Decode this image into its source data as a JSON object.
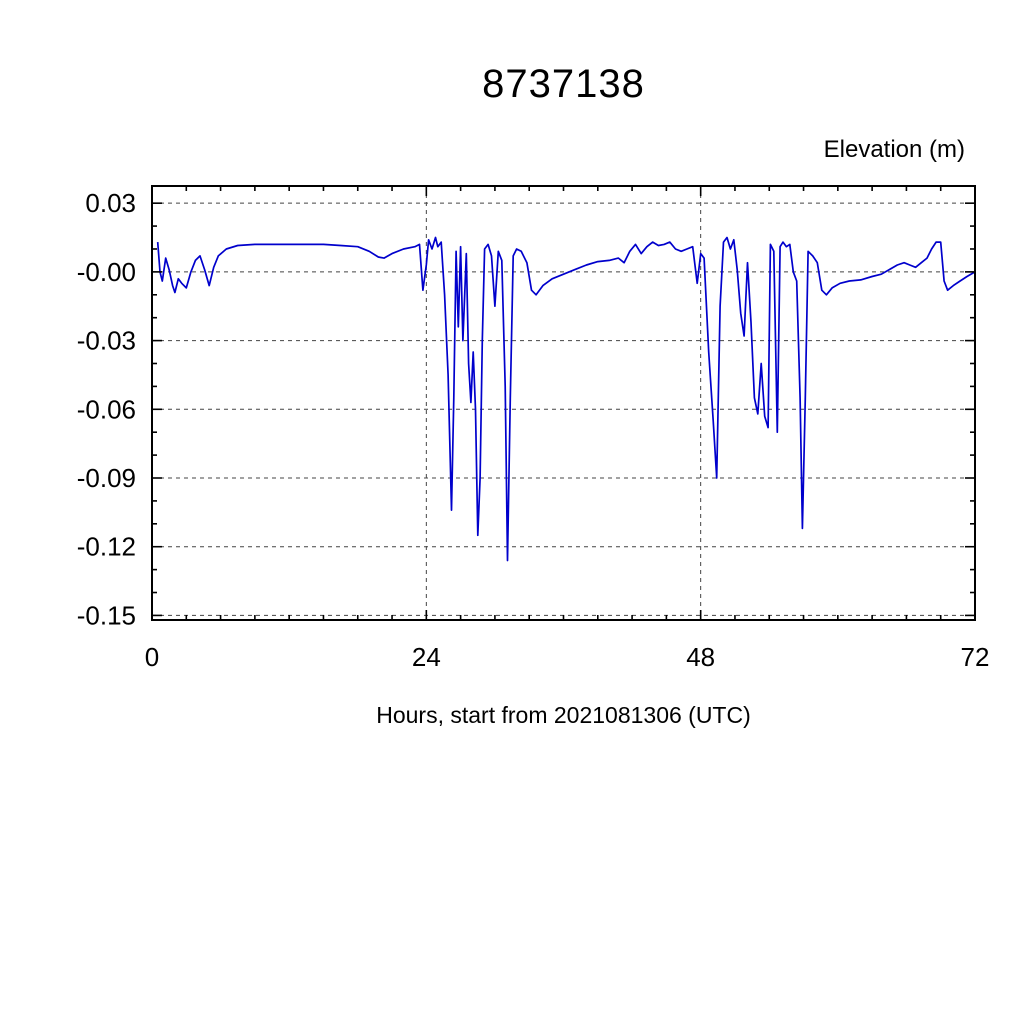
{
  "chart_data": {
    "type": "line",
    "title": "8737138",
    "ylabel": "Elevation (m)",
    "xlabel": "Hours, start from 2021081306 (UTC)",
    "xlim": [
      0,
      72
    ],
    "ylim": [
      -0.152,
      0.0375
    ],
    "grid": true,
    "grid_x": [
      24,
      48
    ],
    "x_minor_step": 3,
    "y_minor_step": 0.01,
    "legend": "none",
    "colors": {
      "line": "#0000cc",
      "frame": "#000000",
      "grid": "#444444"
    },
    "xticks": [
      {
        "v": 0,
        "label": "0"
      },
      {
        "v": 24,
        "label": "24"
      },
      {
        "v": 48,
        "label": "48"
      },
      {
        "v": 72,
        "label": "72"
      }
    ],
    "yticks": [
      {
        "v": 0.03,
        "label": "0.03"
      },
      {
        "v": 0.0,
        "label": "-0.00"
      },
      {
        "v": -0.03,
        "label": "-0.03"
      },
      {
        "v": -0.06,
        "label": "-0.06"
      },
      {
        "v": -0.09,
        "label": "-0.09"
      },
      {
        "v": -0.12,
        "label": "-0.12"
      },
      {
        "v": -0.15,
        "label": "-0.15"
      }
    ],
    "series_name": "elevation",
    "points": [
      [
        0.5,
        0.013
      ],
      [
        0.7,
        0.0
      ],
      [
        0.9,
        -0.004
      ],
      [
        1.2,
        0.006
      ],
      [
        1.5,
        0.001
      ],
      [
        1.8,
        -0.006
      ],
      [
        2.0,
        -0.009
      ],
      [
        2.3,
        -0.003
      ],
      [
        2.6,
        -0.005
      ],
      [
        3.0,
        -0.007
      ],
      [
        3.4,
        0.0
      ],
      [
        3.8,
        0.005
      ],
      [
        4.2,
        0.007
      ],
      [
        4.6,
        0.001
      ],
      [
        5.0,
        -0.006
      ],
      [
        5.4,
        0.002
      ],
      [
        5.8,
        0.007
      ],
      [
        6.5,
        0.01
      ],
      [
        7.5,
        0.0115
      ],
      [
        9,
        0.012
      ],
      [
        11,
        0.012
      ],
      [
        13,
        0.012
      ],
      [
        15,
        0.012
      ],
      [
        16.5,
        0.0115
      ],
      [
        18,
        0.011
      ],
      [
        19,
        0.009
      ],
      [
        19.8,
        0.0065
      ],
      [
        20.3,
        0.006
      ],
      [
        21,
        0.008
      ],
      [
        22,
        0.01
      ],
      [
        23,
        0.011
      ],
      [
        23.4,
        0.012
      ],
      [
        23.7,
        -0.008
      ],
      [
        24.0,
        0.003
      ],
      [
        24.2,
        0.014
      ],
      [
        24.5,
        0.01
      ],
      [
        24.8,
        0.015
      ],
      [
        25.0,
        0.011
      ],
      [
        25.3,
        0.013
      ],
      [
        25.6,
        -0.01
      ],
      [
        25.9,
        -0.045
      ],
      [
        26.2,
        -0.104
      ],
      [
        26.4,
        -0.055
      ],
      [
        26.6,
        0.009
      ],
      [
        26.8,
        -0.024
      ],
      [
        27.0,
        0.011
      ],
      [
        27.2,
        -0.03
      ],
      [
        27.5,
        0.008
      ],
      [
        27.7,
        -0.04
      ],
      [
        27.9,
        -0.057
      ],
      [
        28.1,
        -0.035
      ],
      [
        28.3,
        -0.06
      ],
      [
        28.5,
        -0.115
      ],
      [
        28.7,
        -0.09
      ],
      [
        28.9,
        -0.03
      ],
      [
        29.1,
        0.01
      ],
      [
        29.4,
        0.012
      ],
      [
        29.7,
        0.007
      ],
      [
        30.0,
        -0.015
      ],
      [
        30.3,
        0.009
      ],
      [
        30.6,
        0.005
      ],
      [
        30.9,
        -0.05
      ],
      [
        31.1,
        -0.126
      ],
      [
        31.35,
        -0.055
      ],
      [
        31.6,
        0.007
      ],
      [
        31.9,
        0.01
      ],
      [
        32.3,
        0.009
      ],
      [
        32.8,
        0.004
      ],
      [
        33.2,
        -0.008
      ],
      [
        33.6,
        -0.01
      ],
      [
        34.2,
        -0.006
      ],
      [
        35,
        -0.003
      ],
      [
        36,
        -0.001
      ],
      [
        37,
        0.001
      ],
      [
        38,
        0.003
      ],
      [
        39,
        0.0045
      ],
      [
        40,
        0.005
      ],
      [
        40.8,
        0.006
      ],
      [
        41.3,
        0.004
      ],
      [
        41.8,
        0.009
      ],
      [
        42.3,
        0.012
      ],
      [
        42.8,
        0.008
      ],
      [
        43.3,
        0.011
      ],
      [
        43.8,
        0.013
      ],
      [
        44.3,
        0.0115
      ],
      [
        44.8,
        0.012
      ],
      [
        45.3,
        0.013
      ],
      [
        45.8,
        0.01
      ],
      [
        46.3,
        0.009
      ],
      [
        46.8,
        0.01
      ],
      [
        47.3,
        0.011
      ],
      [
        47.7,
        -0.005
      ],
      [
        48.0,
        0.008
      ],
      [
        48.3,
        0.006
      ],
      [
        48.7,
        -0.035
      ],
      [
        49.1,
        -0.065
      ],
      [
        49.4,
        -0.09
      ],
      [
        49.7,
        -0.015
      ],
      [
        50.0,
        0.013
      ],
      [
        50.3,
        0.015
      ],
      [
        50.6,
        0.01
      ],
      [
        50.9,
        0.014
      ],
      [
        51.2,
        0.001
      ],
      [
        51.5,
        -0.018
      ],
      [
        51.8,
        -0.028
      ],
      [
        52.1,
        0.004
      ],
      [
        52.4,
        -0.022
      ],
      [
        52.7,
        -0.055
      ],
      [
        53.0,
        -0.062
      ],
      [
        53.3,
        -0.04
      ],
      [
        53.6,
        -0.063
      ],
      [
        53.9,
        -0.068
      ],
      [
        54.1,
        0.012
      ],
      [
        54.4,
        0.009
      ],
      [
        54.7,
        -0.07
      ],
      [
        54.95,
        0.011
      ],
      [
        55.2,
        0.013
      ],
      [
        55.5,
        0.011
      ],
      [
        55.8,
        0.012
      ],
      [
        56.1,
        0.0
      ],
      [
        56.4,
        -0.004
      ],
      [
        56.7,
        -0.055
      ],
      [
        56.9,
        -0.112
      ],
      [
        57.15,
        -0.055
      ],
      [
        57.4,
        0.009
      ],
      [
        57.8,
        0.007
      ],
      [
        58.2,
        0.004
      ],
      [
        58.6,
        -0.008
      ],
      [
        59.0,
        -0.01
      ],
      [
        59.5,
        -0.007
      ],
      [
        60.2,
        -0.005
      ],
      [
        61,
        -0.004
      ],
      [
        62,
        -0.0035
      ],
      [
        63,
        -0.002
      ],
      [
        63.8,
        -0.001
      ],
      [
        64.5,
        0.001
      ],
      [
        65.2,
        0.003
      ],
      [
        65.8,
        0.004
      ],
      [
        66.3,
        0.003
      ],
      [
        66.8,
        0.002
      ],
      [
        67.3,
        0.004
      ],
      [
        67.8,
        0.006
      ],
      [
        68.2,
        0.01
      ],
      [
        68.6,
        0.013
      ],
      [
        69.0,
        0.013
      ],
      [
        69.3,
        -0.004
      ],
      [
        69.6,
        -0.008
      ],
      [
        70.1,
        -0.006
      ],
      [
        70.7,
        -0.004
      ],
      [
        71.3,
        -0.002
      ],
      [
        72,
        0.0
      ]
    ]
  }
}
